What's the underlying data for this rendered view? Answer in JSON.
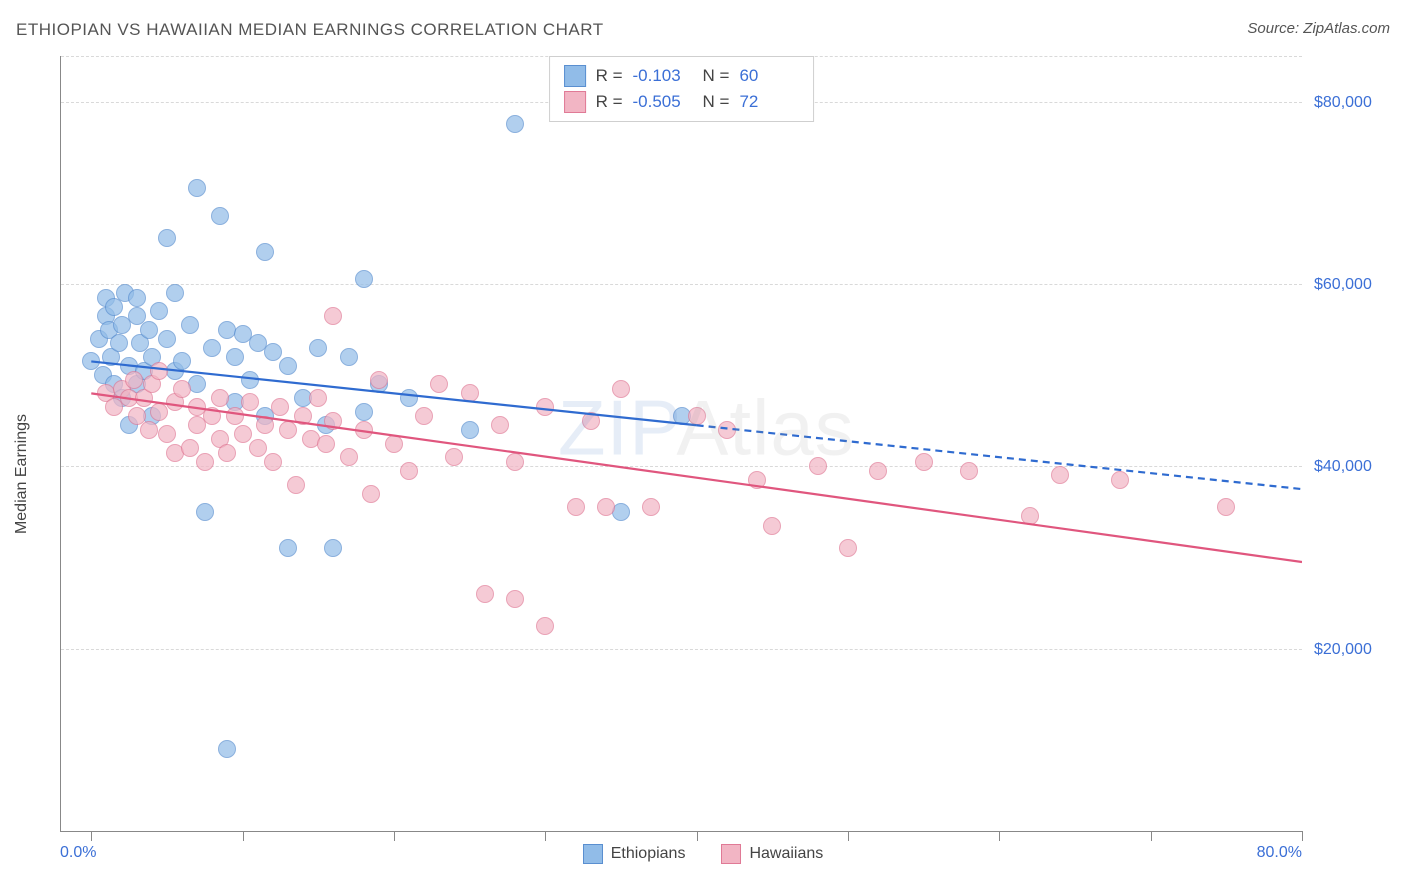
{
  "title": "ETHIOPIAN VS HAWAIIAN MEDIAN EARNINGS CORRELATION CHART",
  "source_label": "Source: ",
  "source_name": "ZipAtlas.com",
  "watermark_prefix": "ZIP",
  "watermark_suffix": "Atlas",
  "chart": {
    "type": "scatter-with-regression",
    "ylabel": "Median Earnings",
    "xmin_label": "0.0%",
    "xmax_label": "80.0%",
    "xlim": [
      -2,
      80
    ],
    "ylim": [
      0,
      85000
    ],
    "yticks": [
      20000,
      40000,
      60000,
      80000
    ],
    "ytick_labels": [
      "$20,000",
      "$40,000",
      "$60,000",
      "$80,000"
    ],
    "x_tick_positions": [
      0,
      10,
      20,
      30,
      40,
      50,
      60,
      70,
      80
    ],
    "grid_color": "#d9d9d9",
    "axis_color": "#888888",
    "background_color": "#ffffff",
    "point_radius": 9,
    "point_stroke_width": 1.2,
    "point_fill_opacity": 0.35,
    "line_width": 2.2,
    "dash_pattern": "7 5",
    "series": [
      {
        "key": "ethiopians",
        "label": "Ethiopians",
        "color_fill": "#91bce8",
        "color_stroke": "#5a8fd0",
        "line_color": "#2f6bd0",
        "R": "-0.103",
        "N": "60",
        "regression": {
          "x1": 0,
          "y1": 51500,
          "x2": 40,
          "y2": 44500,
          "dash_from_x": 40,
          "x3": 80,
          "y3": 37500
        },
        "points": [
          [
            0,
            51500
          ],
          [
            0.5,
            54000
          ],
          [
            0.8,
            50000
          ],
          [
            1,
            56500
          ],
          [
            1,
            58500
          ],
          [
            1.2,
            55000
          ],
          [
            1.3,
            52000
          ],
          [
            1.5,
            57500
          ],
          [
            1.5,
            49000
          ],
          [
            1.8,
            53500
          ],
          [
            2,
            55500
          ],
          [
            2,
            47500
          ],
          [
            2.2,
            59000
          ],
          [
            2.5,
            51000
          ],
          [
            2.5,
            44500
          ],
          [
            3,
            56500
          ],
          [
            3,
            58500
          ],
          [
            3,
            49000
          ],
          [
            3.2,
            53500
          ],
          [
            3.5,
            50500
          ],
          [
            3.8,
            55000
          ],
          [
            4,
            52000
          ],
          [
            4,
            45500
          ],
          [
            4.5,
            57000
          ],
          [
            5,
            54000
          ],
          [
            5,
            65000
          ],
          [
            5.5,
            50500
          ],
          [
            5.5,
            59000
          ],
          [
            6,
            51500
          ],
          [
            6.5,
            55500
          ],
          [
            7,
            49000
          ],
          [
            7,
            70500
          ],
          [
            7.5,
            35000
          ],
          [
            8,
            53000
          ],
          [
            8.5,
            67500
          ],
          [
            9,
            55000
          ],
          [
            9.5,
            52000
          ],
          [
            9.5,
            47000
          ],
          [
            10,
            54500
          ],
          [
            10.5,
            49500
          ],
          [
            11,
            53500
          ],
          [
            11.5,
            45500
          ],
          [
            11.5,
            63500
          ],
          [
            12,
            52500
          ],
          [
            13,
            51000
          ],
          [
            13,
            31000
          ],
          [
            14,
            47500
          ],
          [
            15,
            53000
          ],
          [
            15.5,
            44500
          ],
          [
            16,
            31000
          ],
          [
            17,
            52000
          ],
          [
            18,
            46000
          ],
          [
            18,
            60500
          ],
          [
            19,
            49000
          ],
          [
            21,
            47500
          ],
          [
            25,
            44000
          ],
          [
            28,
            77500
          ],
          [
            35,
            35000
          ],
          [
            39,
            45500
          ],
          [
            9,
            9000
          ]
        ]
      },
      {
        "key": "hawaiians",
        "label": "Hawaiians",
        "color_fill": "#f2b5c4",
        "color_stroke": "#e07a96",
        "line_color": "#e0567e",
        "R": "-0.505",
        "N": "72",
        "regression": {
          "x1": 0,
          "y1": 48000,
          "x2": 80,
          "y2": 29500,
          "dash_from_x": null
        },
        "points": [
          [
            1,
            48000
          ],
          [
            1.5,
            46500
          ],
          [
            2,
            48500
          ],
          [
            2.5,
            47500
          ],
          [
            2.8,
            49500
          ],
          [
            3,
            45500
          ],
          [
            3.5,
            47500
          ],
          [
            3.8,
            44000
          ],
          [
            4,
            49000
          ],
          [
            4.5,
            46000
          ],
          [
            4.5,
            50500
          ],
          [
            5,
            43500
          ],
          [
            5.5,
            47000
          ],
          [
            5.5,
            41500
          ],
          [
            6,
            48500
          ],
          [
            6.5,
            42000
          ],
          [
            7,
            46500
          ],
          [
            7,
            44500
          ],
          [
            7.5,
            40500
          ],
          [
            8,
            45500
          ],
          [
            8.5,
            43000
          ],
          [
            8.5,
            47500
          ],
          [
            9,
            41500
          ],
          [
            9.5,
            45500
          ],
          [
            10,
            43500
          ],
          [
            10.5,
            47000
          ],
          [
            11,
            42000
          ],
          [
            11.5,
            44500
          ],
          [
            12,
            40500
          ],
          [
            12.5,
            46500
          ],
          [
            13,
            44000
          ],
          [
            13.5,
            38000
          ],
          [
            14,
            45500
          ],
          [
            14.5,
            43000
          ],
          [
            15,
            47500
          ],
          [
            15.5,
            42500
          ],
          [
            16,
            45000
          ],
          [
            16,
            56500
          ],
          [
            17,
            41000
          ],
          [
            18,
            44000
          ],
          [
            18.5,
            37000
          ],
          [
            19,
            49500
          ],
          [
            20,
            42500
          ],
          [
            21,
            39500
          ],
          [
            22,
            45500
          ],
          [
            23,
            49000
          ],
          [
            24,
            41000
          ],
          [
            25,
            48000
          ],
          [
            26,
            26000
          ],
          [
            27,
            44500
          ],
          [
            28,
            40500
          ],
          [
            28,
            25500
          ],
          [
            30,
            46500
          ],
          [
            30,
            22500
          ],
          [
            32,
            35500
          ],
          [
            33,
            45000
          ],
          [
            34,
            35500
          ],
          [
            35,
            48500
          ],
          [
            37,
            35500
          ],
          [
            40,
            45500
          ],
          [
            42,
            44000
          ],
          [
            44,
            38500
          ],
          [
            45,
            33500
          ],
          [
            48,
            40000
          ],
          [
            50,
            31000
          ],
          [
            52,
            39500
          ],
          [
            55,
            40500
          ],
          [
            58,
            39500
          ],
          [
            62,
            34500
          ],
          [
            64,
            39000
          ],
          [
            68,
            38500
          ],
          [
            75,
            35500
          ]
        ]
      }
    ],
    "stats_box": {
      "R_label": "R =",
      "N_label": "N ="
    }
  }
}
